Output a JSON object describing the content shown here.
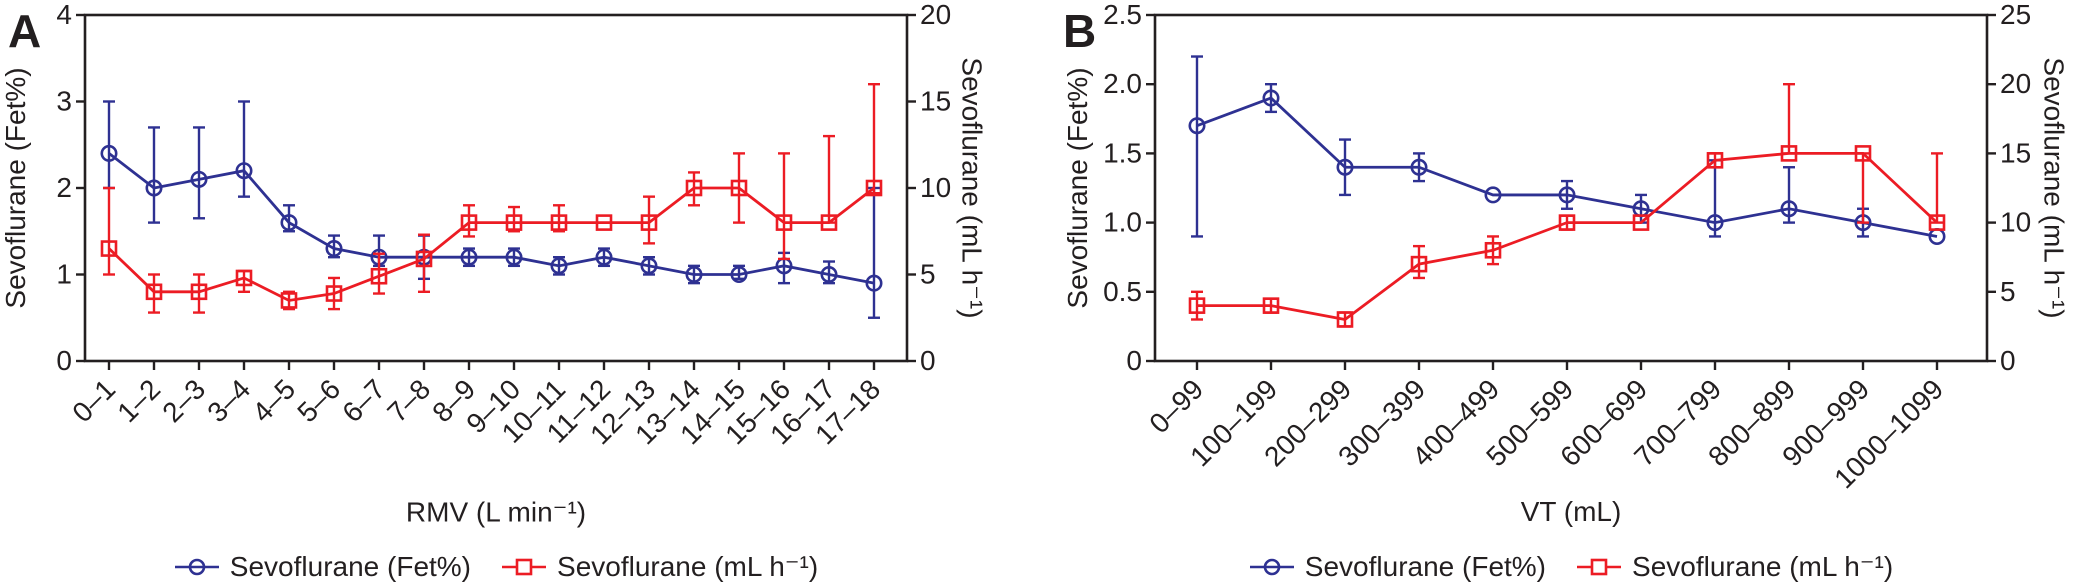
{
  "figure": {
    "background": "#ffffff",
    "ink_color": "#231f20",
    "accent_blue": "#2e3192",
    "accent_red": "#ec1c24"
  },
  "chart_data": [
    {
      "type": "line",
      "panel_label": "A",
      "xlabel": "RMV (L min⁻¹)",
      "grid": false,
      "legend_position": "bottom",
      "categories": [
        "0–1",
        "1–2",
        "2–3",
        "3–4",
        "4–5",
        "5–6",
        "6–7",
        "7–8",
        "8–9",
        "9–10",
        "10–11",
        "11–12",
        "12–13",
        "13–14",
        "14–15",
        "15–16",
        "16–17",
        "17–18"
      ],
      "y_left": {
        "label": "Sevoflurane (Fet%)",
        "min": 0,
        "max": 4,
        "ticks": [
          "0",
          "1",
          "2",
          "3",
          "4"
        ]
      },
      "y_right": {
        "label": "Sevoflurane (mL h⁻¹)",
        "min": 0,
        "max": 20,
        "ticks": [
          "0",
          "5",
          "10",
          "15",
          "20"
        ]
      },
      "series": [
        {
          "name": "Sevoflurane (Fet%)",
          "axis": "left",
          "color": "#2e3192",
          "marker": "circle",
          "values": [
            2.4,
            2.0,
            2.1,
            2.2,
            1.6,
            1.3,
            1.2,
            1.2,
            1.2,
            1.2,
            1.1,
            1.2,
            1.1,
            1.0,
            1.0,
            1.1,
            1.0,
            0.9
          ],
          "err_lo": [
            2.0,
            1.6,
            1.65,
            1.9,
            1.5,
            1.2,
            1.1,
            0.95,
            1.1,
            1.1,
            1.0,
            1.1,
            1.0,
            0.9,
            0.95,
            0.9,
            0.9,
            0.5
          ],
          "err_hi": [
            3.0,
            2.7,
            2.7,
            3.0,
            1.8,
            1.45,
            1.45,
            1.45,
            1.3,
            1.3,
            1.2,
            1.3,
            1.2,
            1.1,
            1.1,
            1.25,
            1.15,
            2.0
          ]
        },
        {
          "name": "Sevoflurane (mL h⁻¹)",
          "axis": "right",
          "color": "#ec1c24",
          "marker": "square",
          "values": [
            6.5,
            4,
            4,
            4.8,
            3.5,
            3.9,
            4.9,
            5.9,
            8,
            8,
            8,
            8,
            8,
            10,
            10,
            8,
            8,
            10
          ],
          "err_lo": [
            5,
            2.8,
            2.8,
            4,
            3,
            3,
            3.9,
            4,
            7.2,
            7.5,
            7.5,
            8,
            6.8,
            9,
            8,
            5.9,
            8,
            9.7
          ],
          "err_hi": [
            10,
            5,
            5,
            5.2,
            4,
            4.8,
            6.2,
            7.3,
            9,
            8.9,
            9,
            8,
            9.5,
            10.9,
            12,
            12,
            13,
            16
          ]
        }
      ]
    },
    {
      "type": "line",
      "panel_label": "B",
      "xlabel": "VT (mL)",
      "grid": false,
      "legend_position": "bottom",
      "categories": [
        "0–99",
        "100–199",
        "200–299",
        "300–399",
        "400–499",
        "500–599",
        "600–699",
        "700–799",
        "800–899",
        "900–999",
        "1000–1099"
      ],
      "y_left": {
        "label": "Sevoflurane (Fet%)",
        "min": 0,
        "max": 2.5,
        "ticks": [
          "0",
          "0.5",
          "1.0",
          "1.5",
          "2.0",
          "2.5"
        ]
      },
      "y_right": {
        "label": "Sevoflurane (mL h⁻¹)",
        "min": 0,
        "max": 25,
        "ticks": [
          "0",
          "5",
          "10",
          "15",
          "20",
          "25"
        ]
      },
      "series": [
        {
          "name": "Sevoflurane (Fet%)",
          "axis": "left",
          "color": "#2e3192",
          "marker": "circle",
          "values": [
            1.7,
            1.9,
            1.4,
            1.4,
            1.2,
            1.2,
            1.1,
            1.0,
            1.1,
            1.0,
            0.9
          ],
          "err_lo": [
            0.9,
            1.8,
            1.2,
            1.3,
            1.2,
            1.1,
            1.0,
            0.9,
            1.0,
            0.9,
            0.9
          ],
          "err_hi": [
            2.2,
            2.0,
            1.6,
            1.5,
            1.2,
            1.3,
            1.2,
            1.45,
            1.4,
            1.1,
            0.9
          ]
        },
        {
          "name": "Sevoflurane (mL h⁻¹)",
          "axis": "right",
          "color": "#ec1c24",
          "marker": "square",
          "values": [
            4,
            4,
            3,
            7,
            8,
            10,
            10,
            14.5,
            15,
            15,
            10
          ],
          "err_lo": [
            3,
            3.5,
            2.5,
            6,
            7,
            9.5,
            10,
            14,
            15,
            10,
            10
          ],
          "err_hi": [
            5,
            4.5,
            3.5,
            8.3,
            9,
            10.5,
            10,
            15,
            20,
            15,
            15
          ]
        }
      ]
    }
  ]
}
